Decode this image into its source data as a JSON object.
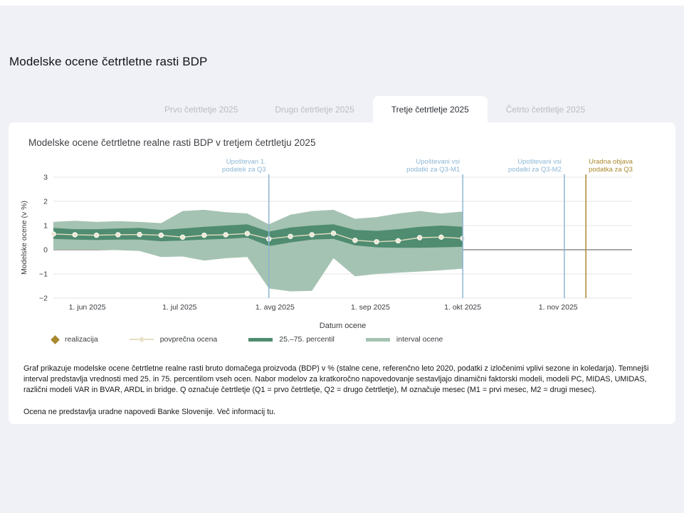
{
  "page": {
    "title": "Modelske ocene četrtletne rasti BDP"
  },
  "tabs": [
    {
      "label": "Prvo četrtletje 2025",
      "active": false
    },
    {
      "label": "Drugo četrtletje 2025",
      "active": false
    },
    {
      "label": "Tretje četrtletje 2025",
      "active": true
    },
    {
      "label": "Četrto četrtletje 2025",
      "active": false
    }
  ],
  "panel": {
    "chart_title": "Modelske ocene četrtletne realne rasti BDP v tretjem četrtletju 2025"
  },
  "chart_data": {
    "type": "area",
    "title": "Modelske ocene četrtletne realne rasti BDP v tretjem četrtletju 2025",
    "xlabel": "Datum ocene",
    "ylabel": "Modelske ocene (v %)",
    "ylim": [
      -2,
      3
    ],
    "yticks": [
      -2,
      -1,
      0,
      1,
      2,
      3
    ],
    "grid": true,
    "x_domain_days": [
      0,
      188
    ],
    "x_ticks": [
      {
        "label": "1. jun 2025",
        "day": 11
      },
      {
        "label": "1. jul 2025",
        "day": 41
      },
      {
        "label": "1. avg 2025",
        "day": 72
      },
      {
        "label": "1. sep 2025",
        "day": 103
      },
      {
        "label": "1. okt 2025",
        "day": 133
      },
      {
        "label": "1. nov 2025",
        "day": 164
      }
    ],
    "series_dates": [
      "21. maj 2025",
      "28. maj 2025",
      "4. jun 2025",
      "11. jun 2025",
      "18. jun 2025",
      "25. jun 2025",
      "2. jul 2025",
      "9. jul 2025",
      "16. jul 2025",
      "23. jul 2025",
      "30. jul 2025",
      "6. avg 2025",
      "13. avg 2025",
      "20. avg 2025",
      "27. avg 2025",
      "3. sep 2025",
      "10. sep 2025",
      "17. sep 2025",
      "24. sep 2025",
      "1. okt 2025"
    ],
    "days": [
      0,
      7,
      14,
      21,
      28,
      35,
      42,
      49,
      56,
      63,
      70,
      77,
      84,
      91,
      98,
      105,
      112,
      119,
      126,
      133
    ],
    "series": [
      {
        "name": "povprečna ocena",
        "values": [
          0.65,
          0.62,
          0.6,
          0.62,
          0.63,
          0.6,
          0.52,
          0.6,
          0.62,
          0.67,
          0.45,
          0.55,
          0.62,
          0.68,
          0.39,
          0.33,
          0.37,
          0.5,
          0.52,
          0.47
        ]
      },
      {
        "name": "75. percentil",
        "values": [
          0.9,
          0.85,
          0.85,
          0.88,
          0.9,
          0.82,
          0.88,
          0.95,
          1.0,
          1.05,
          0.75,
          0.92,
          1.0,
          1.05,
          0.82,
          0.78,
          0.85,
          0.95,
          1.0,
          0.95
        ]
      },
      {
        "name": "25. percentil",
        "values": [
          0.45,
          0.42,
          0.4,
          0.42,
          0.42,
          0.35,
          0.38,
          0.42,
          0.45,
          0.5,
          0.15,
          0.3,
          0.42,
          0.45,
          0.18,
          0.1,
          0.08,
          0.08,
          0.1,
          0.12
        ]
      },
      {
        "name": "interval max",
        "values": [
          1.15,
          1.2,
          1.15,
          1.18,
          1.15,
          1.1,
          1.6,
          1.65,
          1.55,
          1.5,
          1.05,
          1.45,
          1.6,
          1.65,
          1.28,
          1.35,
          1.5,
          1.6,
          1.5,
          1.58
        ]
      },
      {
        "name": "interval min",
        "values": [
          0.0,
          0.0,
          0.0,
          -0.02,
          -0.05,
          -0.3,
          -0.28,
          -0.45,
          -0.35,
          -0.3,
          -1.6,
          -1.72,
          -1.7,
          -0.35,
          -1.1,
          -1.0,
          -0.95,
          -0.9,
          -0.85,
          -0.78
        ]
      }
    ],
    "annotations": [
      {
        "lines": [
          "Upoštevan 1.",
          "podatek za Q3"
        ],
        "day": 70,
        "color_key": "blue",
        "align": "end"
      },
      {
        "lines": [
          "Upoštevani vsi",
          "podatki za Q3-M1"
        ],
        "day": 133,
        "color_key": "blue",
        "align": "end"
      },
      {
        "lines": [
          "Upoštevani vsi",
          "podatki za Q3-M2"
        ],
        "day": 166,
        "color_key": "blue",
        "align": "end"
      },
      {
        "lines": [
          "Uradna objava",
          "podatka za Q3"
        ],
        "day": 173,
        "color_key": "gold",
        "align": "start"
      }
    ],
    "colors": {
      "band_light": "#a5c3b2",
      "band_dark": "#4f8c70",
      "mean_line": "#e5ddc2",
      "mean_dot_fill": "#ece6cf",
      "mean_dot_stroke": "#ffffff",
      "annotation_blue": "#8cb6d4",
      "annotation_gold": "#a9882e",
      "zero_line": "#515151",
      "grid": "#e5e6ea",
      "axis_text": "#3a3c40"
    },
    "legend_position": "bottom"
  },
  "legend": [
    {
      "label": "realizacija",
      "swatch": "diamond",
      "color": "#a9882e"
    },
    {
      "label": "povprečna ocena",
      "swatch": "line-dot",
      "color": "#e5ddc2"
    },
    {
      "label": "25.–75. percentil",
      "swatch": "bar",
      "color": "#4f8c70"
    },
    {
      "label": "interval ocene",
      "swatch": "bar",
      "color": "#a5c3b2"
    }
  ],
  "notes": {
    "p1": "Graf prikazuje modelske ocene četrtletne realne rasti bruto domačega proizvoda (BDP) v % (stalne cene, referenčno leto 2020, podatki z izločenimi vplivi sezone in koledarja). Temnejši interval predstavlja vrednosti med 25. in 75. percentilom vseh ocen. Nabor modelov za kratkoročno napovedovanje sestavljajo dinamični faktorski modeli, modeli PC, MIDAS, UMIDAS, različni modeli VAR in BVAR, ARDL in bridge. Q označuje četrtletje (Q1 = prvo četrtletje, Q2 = drugo četrtletje), M označuje mesec (M1 = prvi mesec, M2 = drugi mesec).",
    "p2_text": "Ocena ne predstavlja uradne napovedi Banke Slovenije. Več informacij ",
    "p2_link": "tu."
  }
}
